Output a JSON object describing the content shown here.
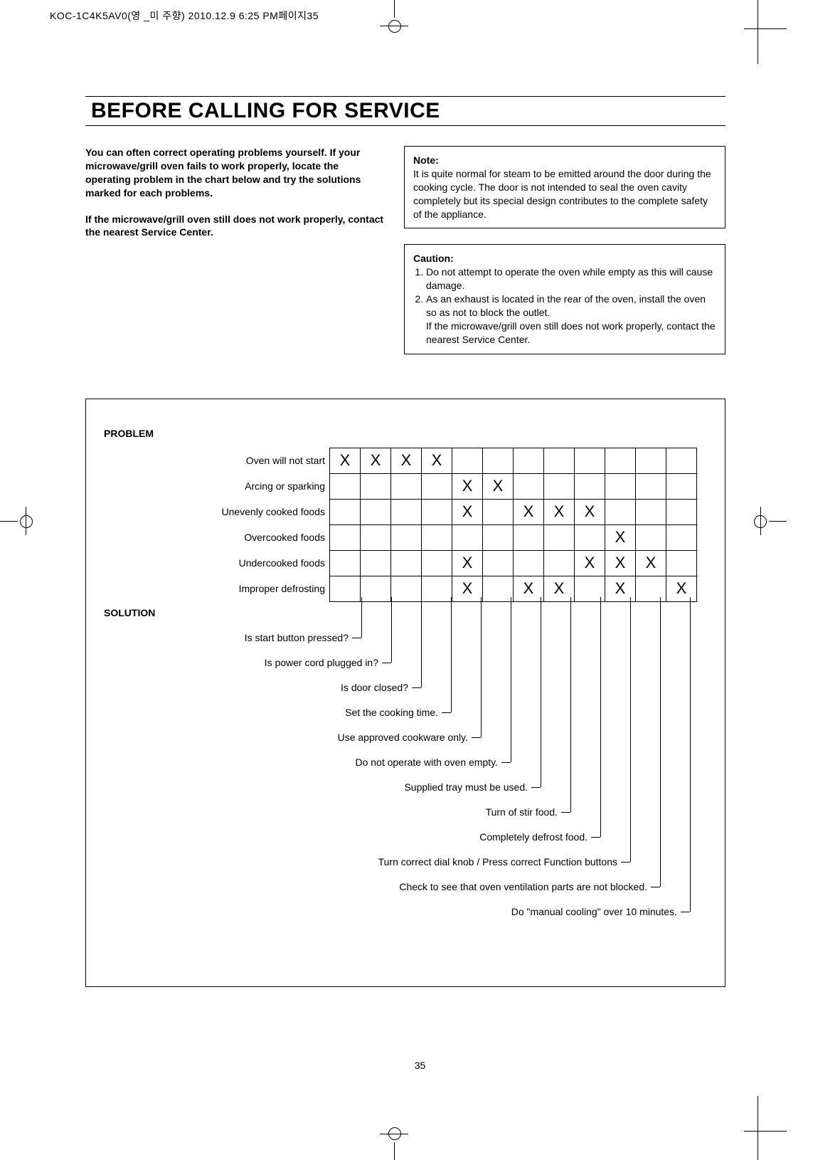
{
  "header_meta": "KOC-1C4K5AV0(영 _미 주향)  2010.12.9 6:25 PM페이지35",
  "title": "BEFORE CALLING FOR SERVICE",
  "intro_p1": "You can often correct operating problems yourself. If your microwave/grill oven fails to work properly, locate the operating problem in the chart below and try the solutions marked for each problems.",
  "intro_p2": "If the microwave/grill oven still does not work properly, contact the nearest Service Center.",
  "note_label": "Note:",
  "note_body": "It is quite normal for steam to be emitted around the door during the cooking cycle. The door is not intended to seal the oven cavity completely but its special design contributes to the complete safety of the appliance.",
  "caution_label": "Caution:",
  "caution_1": "Do not attempt to operate the oven while empty as this will cause damage.",
  "caution_2": "As an exhaust is located in the rear of the oven, install the oven so as not to block the outlet.",
  "caution_2_sub": "If the microwave/grill oven still does not work properly, contact the nearest Service Center.",
  "problem_label": "PROBLEM",
  "solution_label": "SOLUTION",
  "problems": [
    {
      "label": "Oven will not start",
      "marks": [
        "X",
        "X",
        "X",
        "X",
        "",
        "",
        "",
        "",
        "",
        "",
        "",
        ""
      ]
    },
    {
      "label": "Arcing or sparking",
      "marks": [
        "",
        "",
        "",
        "",
        "X",
        "X",
        "",
        "",
        "",
        "",
        "",
        ""
      ]
    },
    {
      "label": "Unevenly cooked foods",
      "marks": [
        "",
        "",
        "",
        "",
        "X",
        "",
        "X",
        "X",
        "X",
        "",
        "",
        ""
      ]
    },
    {
      "label": "Overcooked foods",
      "marks": [
        "",
        "",
        "",
        "",
        "",
        "",
        "",
        "",
        "",
        "X",
        "",
        ""
      ]
    },
    {
      "label": "Undercooked foods",
      "marks": [
        "",
        "",
        "",
        "",
        "X",
        "",
        "",
        "",
        "X",
        "X",
        "X",
        ""
      ]
    },
    {
      "label": "Improper defrosting",
      "marks": [
        "",
        "",
        "",
        "",
        "X",
        "",
        "X",
        "X",
        "",
        "X",
        "",
        "X"
      ]
    }
  ],
  "solutions": [
    "Is start button pressed?",
    "Is power cord plugged in?",
    "Is door closed?",
    "Set the cooking time.",
    "Use approved cookware only.",
    "Do not operate with oven empty.",
    "Supplied tray must be used.",
    "Turn of stir food.",
    "Completely defrost food.",
    "Turn correct dial knob / Press correct Function buttons",
    "Check to see that oven ventilation parts are not blocked.",
    "Do \"manual cooling\" over 10 minutes."
  ],
  "page_number": "35"
}
